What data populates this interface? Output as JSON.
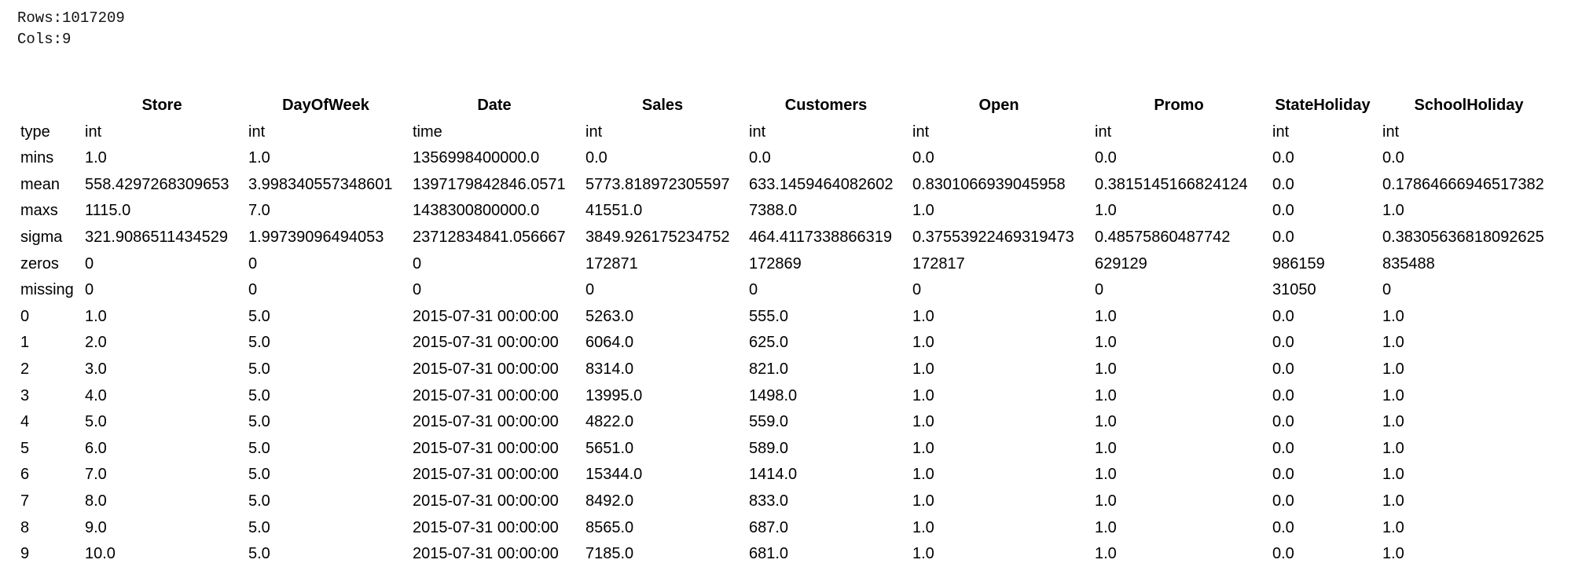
{
  "summary": {
    "rows_line": "Rows:1017209",
    "cols_line": "Cols:9"
  },
  "table": {
    "corner": "",
    "columns": [
      "Store",
      "DayOfWeek",
      "Date",
      "Sales",
      "Customers",
      "Open",
      "Promo",
      "StateHoliday",
      "SchoolHoliday"
    ],
    "rows": [
      {
        "label": "type",
        "cells": [
          "int",
          "int",
          "time",
          "int",
          "int",
          "int",
          "int",
          "int",
          "int"
        ]
      },
      {
        "label": "mins",
        "cells": [
          "1.0",
          "1.0",
          "1356998400000.0",
          "0.0",
          "0.0",
          "0.0",
          "0.0",
          "0.0",
          "0.0"
        ]
      },
      {
        "label": "mean",
        "cells": [
          "558.4297268309653",
          "3.998340557348601",
          "1397179842846.0571",
          "5773.818972305597",
          "633.1459464082602",
          "0.8301066939045958",
          "0.3815145166824124",
          "0.0",
          "0.17864666946517382"
        ]
      },
      {
        "label": "maxs",
        "cells": [
          "1115.0",
          "7.0",
          "1438300800000.0",
          "41551.0",
          "7388.0",
          "1.0",
          "1.0",
          "0.0",
          "1.0"
        ]
      },
      {
        "label": "sigma",
        "cells": [
          "321.9086511434529",
          "1.99739096494053",
          "23712834841.056667",
          "3849.926175234752",
          "464.4117338866319",
          "0.37553922469319473",
          "0.48575860487742",
          "0.0",
          "0.38305636818092625"
        ]
      },
      {
        "label": "zeros",
        "cells": [
          "0",
          "0",
          "0",
          "172871",
          "172869",
          "172817",
          "629129",
          "986159",
          "835488"
        ]
      },
      {
        "label": "missing",
        "cells": [
          "0",
          "0",
          "0",
          "0",
          "0",
          "0",
          "0",
          "31050",
          "0"
        ]
      },
      {
        "label": "0",
        "cells": [
          "1.0",
          "5.0",
          "2015-07-31 00:00:00",
          "5263.0",
          "555.0",
          "1.0",
          "1.0",
          "0.0",
          "1.0"
        ]
      },
      {
        "label": "1",
        "cells": [
          "2.0",
          "5.0",
          "2015-07-31 00:00:00",
          "6064.0",
          "625.0",
          "1.0",
          "1.0",
          "0.0",
          "1.0"
        ]
      },
      {
        "label": "2",
        "cells": [
          "3.0",
          "5.0",
          "2015-07-31 00:00:00",
          "8314.0",
          "821.0",
          "1.0",
          "1.0",
          "0.0",
          "1.0"
        ]
      },
      {
        "label": "3",
        "cells": [
          "4.0",
          "5.0",
          "2015-07-31 00:00:00",
          "13995.0",
          "1498.0",
          "1.0",
          "1.0",
          "0.0",
          "1.0"
        ]
      },
      {
        "label": "4",
        "cells": [
          "5.0",
          "5.0",
          "2015-07-31 00:00:00",
          "4822.0",
          "559.0",
          "1.0",
          "1.0",
          "0.0",
          "1.0"
        ]
      },
      {
        "label": "5",
        "cells": [
          "6.0",
          "5.0",
          "2015-07-31 00:00:00",
          "5651.0",
          "589.0",
          "1.0",
          "1.0",
          "0.0",
          "1.0"
        ]
      },
      {
        "label": "6",
        "cells": [
          "7.0",
          "5.0",
          "2015-07-31 00:00:00",
          "15344.0",
          "1414.0",
          "1.0",
          "1.0",
          "0.0",
          "1.0"
        ]
      },
      {
        "label": "7",
        "cells": [
          "8.0",
          "5.0",
          "2015-07-31 00:00:00",
          "8492.0",
          "833.0",
          "1.0",
          "1.0",
          "0.0",
          "1.0"
        ]
      },
      {
        "label": "8",
        "cells": [
          "9.0",
          "5.0",
          "2015-07-31 00:00:00",
          "8565.0",
          "687.0",
          "1.0",
          "1.0",
          "0.0",
          "1.0"
        ]
      },
      {
        "label": "9",
        "cells": [
          "10.0",
          "5.0",
          "2015-07-31 00:00:00",
          "7185.0",
          "681.0",
          "1.0",
          "1.0",
          "0.0",
          "1.0"
        ]
      }
    ]
  }
}
